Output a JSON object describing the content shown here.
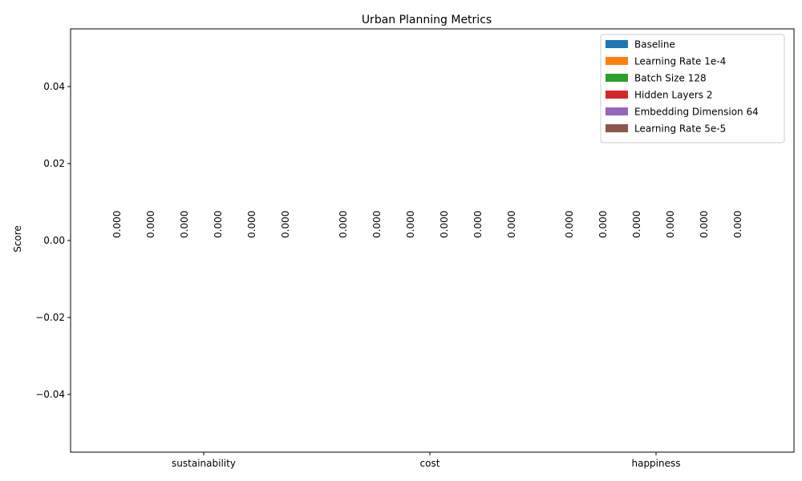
{
  "chart_data": {
    "type": "bar",
    "title": "Urban Planning Metrics",
    "xlabel": "",
    "ylabel": "Score",
    "categories": [
      "sustainability",
      "cost",
      "happiness"
    ],
    "series": [
      {
        "name": "Baseline",
        "values": [
          0,
          0,
          0
        ],
        "labels": [
          "0.000",
          "0.000",
          "0.000"
        ],
        "color": "#1f77b4"
      },
      {
        "name": "Learning Rate 1e-4",
        "values": [
          0,
          0,
          0
        ],
        "labels": [
          "0.000",
          "0.000",
          "0.000"
        ],
        "color": "#ff7f0e"
      },
      {
        "name": "Batch Size 128",
        "values": [
          0,
          0,
          0
        ],
        "labels": [
          "0.000",
          "0.000",
          "0.000"
        ],
        "color": "#2ca02c"
      },
      {
        "name": "Hidden Layers 2",
        "values": [
          0,
          0,
          0
        ],
        "labels": [
          "0.000",
          "0.000",
          "0.000"
        ],
        "color": "#d62728"
      },
      {
        "name": "Embedding Dimension 64",
        "values": [
          0,
          0,
          0
        ],
        "labels": [
          "0.000",
          "0.000",
          "0.000"
        ],
        "color": "#9467bd"
      },
      {
        "name": "Learning Rate 5e-5",
        "values": [
          0,
          0,
          0
        ],
        "labels": [
          "0.000",
          "0.000",
          "0.000"
        ],
        "color": "#8c564b"
      }
    ],
    "ylim": [
      -0.055,
      0.055
    ],
    "yticks": [
      -0.04,
      -0.02,
      0.0,
      0.02,
      0.04
    ],
    "ytick_labels": [
      "−0.04",
      "−0.02",
      "0.00",
      "0.02",
      "0.04"
    ],
    "legend_position": "top-right",
    "grid": false
  }
}
